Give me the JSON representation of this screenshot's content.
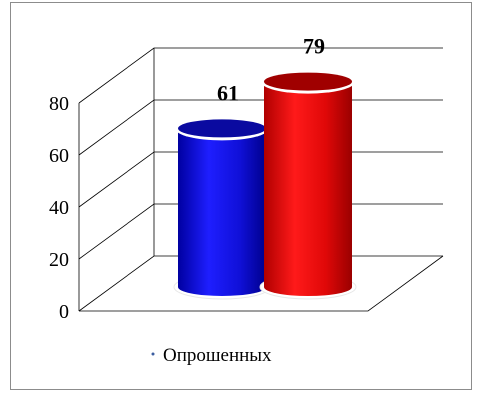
{
  "chart_data": {
    "type": "bar",
    "style": "3d-cylinder",
    "categories": [
      ""
    ],
    "series": [
      {
        "values": [
          61
        ],
        "color": "#1515e6",
        "color_top": "#0a0aa0"
      },
      {
        "values": [
          79
        ],
        "color": "#e60a0a",
        "color_top": "#a00000"
      }
    ],
    "data_labels": [
      "61",
      "79"
    ],
    "ylim": [
      0,
      80
    ],
    "yticks": [
      "0",
      "20",
      "40",
      "60",
      "80"
    ],
    "grid": true,
    "legend": {
      "position": "bottom-left",
      "entries": [
        "Опрошенных"
      ]
    }
  }
}
